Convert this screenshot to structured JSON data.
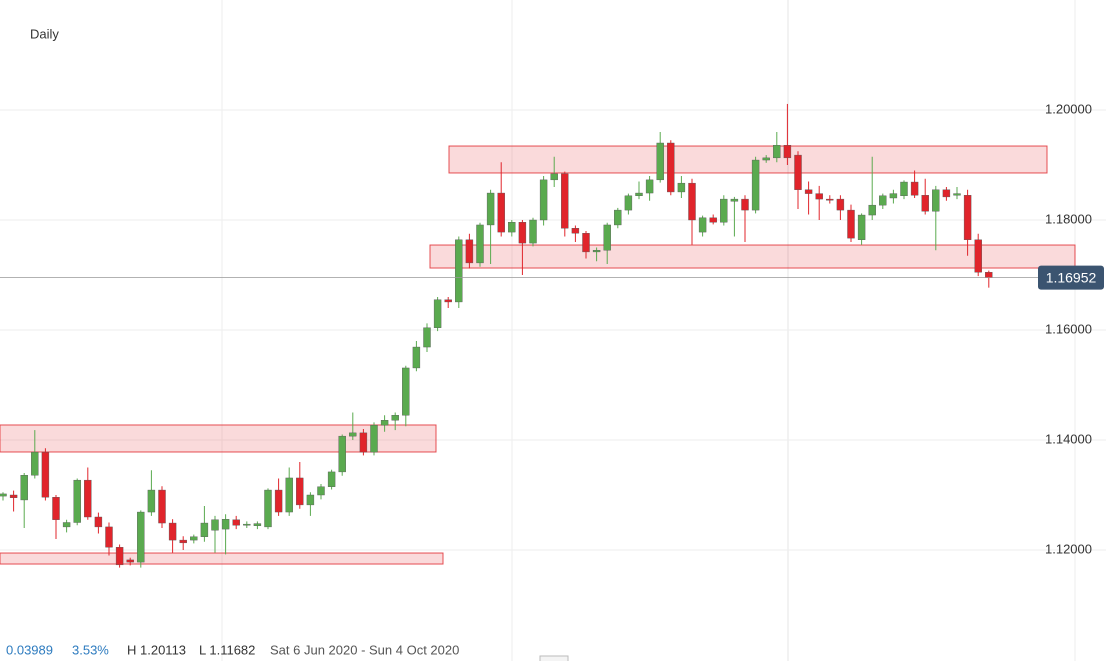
{
  "chart_data": {
    "type": "candlestick",
    "title": "Daily",
    "open": [
      1.1298,
      1.13,
      1.1291,
      1.1336,
      1.1378,
      1.1296,
      1.1242,
      1.125,
      1.1327,
      1.126,
      1.1242,
      1.1205,
      1.1182,
      1.1178,
      1.1269,
      1.1309,
      1.1249,
      1.1218,
      1.1218,
      1.1224,
      1.1236,
      1.1238,
      1.1255,
      1.1245,
      1.1244,
      1.1242,
      1.1309,
      1.1269,
      1.1331,
      1.1282,
      1.13,
      1.1315,
      1.1342,
      1.1407,
      1.1413,
      1.1378,
      1.1427,
      1.1436,
      1.1445,
      1.1531,
      1.1569,
      1.1604,
      1.1655,
      1.1651,
      1.1764,
      1.1722,
      1.1791,
      1.1849,
      1.1778,
      1.1796,
      1.1758,
      1.18,
      1.1873,
      1.1884,
      1.1785,
      1.1776,
      1.1742,
      1.1745,
      1.1791,
      1.1818,
      1.1844,
      1.1849,
      1.1873,
      1.194,
      1.1851,
      1.1867,
      1.1778,
      1.1804,
      1.1796,
      1.1834,
      1.1838,
      1.1818,
      1.1909,
      1.1913,
      1.1936,
      1.1918,
      1.1855,
      1.1848,
      1.1838,
      1.1838,
      1.1818,
      1.1764,
      1.1809,
      1.1827,
      1.184,
      1.1844,
      1.1869,
      1.1845,
      1.1816,
      1.1855,
      1.1845,
      1.1845,
      1.1764,
      1.1705
    ],
    "high": [
      1.1305,
      1.1308,
      1.134,
      1.1418,
      1.1385,
      1.13,
      1.1255,
      1.133,
      1.135,
      1.1268,
      1.125,
      1.121,
      1.1186,
      1.1272,
      1.1345,
      1.1316,
      1.1256,
      1.1225,
      1.1228,
      1.128,
      1.1262,
      1.1265,
      1.1262,
      1.1252,
      1.1252,
      1.1312,
      1.133,
      1.135,
      1.136,
      1.1305,
      1.132,
      1.1346,
      1.141,
      1.145,
      1.142,
      1.1432,
      1.1445,
      1.145,
      1.1535,
      1.158,
      1.1612,
      1.166,
      1.166,
      1.177,
      1.1775,
      1.1795,
      1.1855,
      1.1905,
      1.18,
      1.18,
      1.1804,
      1.188,
      1.1915,
      1.1888,
      1.179,
      1.178,
      1.175,
      1.1795,
      1.1822,
      1.1848,
      1.187,
      1.188,
      1.196,
      1.1945,
      1.188,
      1.1875,
      1.1808,
      1.181,
      1.1845,
      1.1842,
      1.1845,
      1.1915,
      1.1918,
      1.196,
      1.2011,
      1.1925,
      1.187,
      1.1862,
      1.1845,
      1.1845,
      1.1828,
      1.1812,
      1.1915,
      1.1848,
      1.1855,
      1.1872,
      1.189,
      1.1875,
      1.1862,
      1.186,
      1.186,
      1.1855,
      1.1775,
      1.1708
    ],
    "low": [
      1.129,
      1.127,
      1.124,
      1.133,
      1.129,
      1.122,
      1.1232,
      1.1245,
      1.1255,
      1.123,
      1.119,
      1.1168,
      1.1172,
      1.1168,
      1.1262,
      1.124,
      1.1195,
      1.12,
      1.1212,
      1.1215,
      1.1195,
      1.1192,
      1.1238,
      1.124,
      1.1238,
      1.1238,
      1.1262,
      1.1262,
      1.1275,
      1.1262,
      1.1292,
      1.131,
      1.1335,
      1.14,
      1.1372,
      1.1372,
      1.1415,
      1.1418,
      1.1425,
      1.1525,
      1.156,
      1.1598,
      1.164,
      1.164,
      1.1712,
      1.1715,
      1.172,
      1.177,
      1.177,
      1.17,
      1.1752,
      1.179,
      1.186,
      1.177,
      1.176,
      1.173,
      1.1725,
      1.172,
      1.1785,
      1.181,
      1.1838,
      1.1835,
      1.1868,
      1.1845,
      1.184,
      1.1755,
      1.177,
      1.1792,
      1.179,
      1.177,
      1.176,
      1.1812,
      1.1904,
      1.1905,
      1.19,
      1.182,
      1.181,
      1.18,
      1.183,
      1.18,
      1.176,
      1.1755,
      1.18,
      1.182,
      1.183,
      1.1838,
      1.184,
      1.181,
      1.1745,
      1.1835,
      1.1838,
      1.1735,
      1.1698,
      1.1677
    ],
    "close": [
      1.1302,
      1.1295,
      1.1336,
      1.1378,
      1.1296,
      1.1255,
      1.125,
      1.1327,
      1.126,
      1.1242,
      1.1205,
      1.1173,
      1.1178,
      1.1269,
      1.1309,
      1.1249,
      1.1218,
      1.1213,
      1.1224,
      1.1249,
      1.1255,
      1.1256,
      1.1245,
      1.1247,
      1.1248,
      1.1309,
      1.1269,
      1.1331,
      1.1282,
      1.13,
      1.1315,
      1.1342,
      1.1407,
      1.1413,
      1.1378,
      1.1427,
      1.1436,
      1.1445,
      1.1531,
      1.1569,
      1.1604,
      1.1655,
      1.1651,
      1.1764,
      1.1722,
      1.1791,
      1.1849,
      1.1778,
      1.1796,
      1.1758,
      1.18,
      1.1873,
      1.1884,
      1.1785,
      1.1776,
      1.1742,
      1.1745,
      1.1791,
      1.1818,
      1.1844,
      1.1849,
      1.1873,
      1.194,
      1.1851,
      1.1867,
      1.18,
      1.1804,
      1.1796,
      1.1838,
      1.1838,
      1.1818,
      1.1909,
      1.1913,
      1.1936,
      1.1913,
      1.1855,
      1.1848,
      1.1838,
      1.1836,
      1.1818,
      1.1767,
      1.1809,
      1.1827,
      1.1844,
      1.1848,
      1.1869,
      1.1845,
      1.1816,
      1.1855,
      1.1842,
      1.1848,
      1.1764,
      1.1705,
      1.1695
    ],
    "up_color": "#5aaa4f",
    "down_color": "#e0242b",
    "zones": [
      {
        "low": 1.13782,
        "high": 1.14273
      },
      {
        "low": 1.11745,
        "high": 1.11945
      },
      {
        "low": 1.17127,
        "high": 1.17545
      },
      {
        "low": 1.18855,
        "high": 1.19345
      }
    ],
    "zone_color": "#e0242b",
    "last_price": {
      "value": 1.16952,
      "label": "1.16952"
    },
    "ylim": [
      1.1,
      1.22
    ],
    "yticks": [
      {
        "value": 1.12,
        "label": "1.12000"
      },
      {
        "value": 1.14,
        "label": "1.14000"
      },
      {
        "value": 1.16,
        "label": "1.16000"
      },
      {
        "value": 1.18,
        "label": "1.18000"
      },
      {
        "value": 1.2,
        "label": "1.20000"
      }
    ],
    "grid": true
  },
  "footer": {
    "change": "0.03989",
    "change_percent": "3.53%",
    "high": "H 1.20113",
    "low": "L 1.11682",
    "range": "Sat 6 Jun 2020 - Sun 4 Oct 2020"
  }
}
